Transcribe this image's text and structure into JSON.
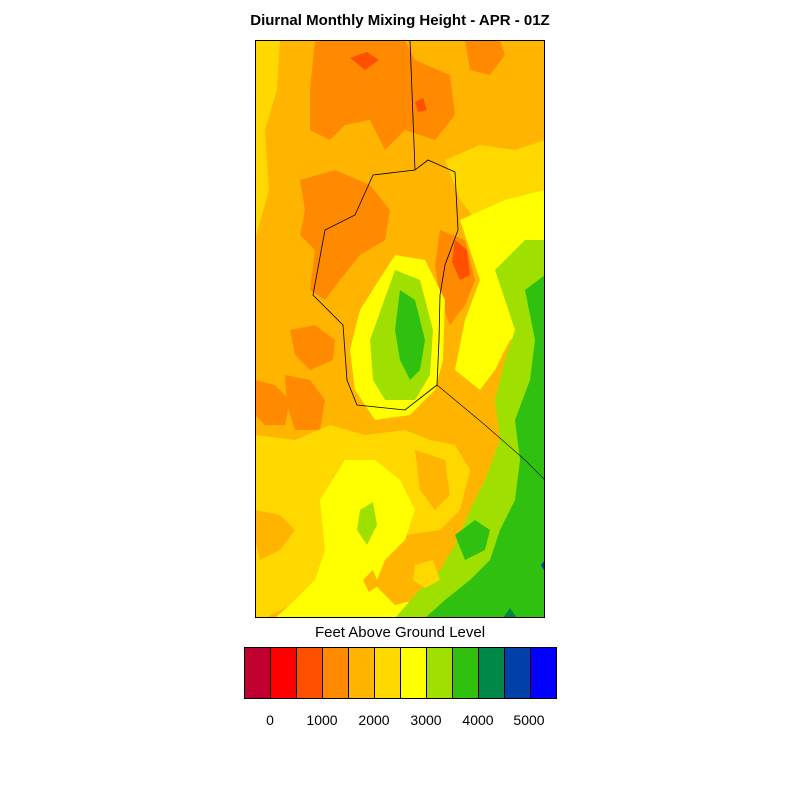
{
  "title": "Diurnal Monthly Mixing Height - APR - 01Z",
  "legend": {
    "title": "Feet Above Ground Level",
    "colors": [
      "#c00030",
      "#ff0000",
      "#ff5000",
      "#ff8a00",
      "#ffb400",
      "#ffd800",
      "#ffff00",
      "#a0e000",
      "#30c010",
      "#008848",
      "#0040a8",
      "#0000ff"
    ],
    "tick_labels": [
      "0",
      "1000",
      "2000",
      "3000",
      "4000",
      "5000"
    ]
  },
  "map": {
    "type": "filled-contour",
    "band_colors": {
      "orange": "#ff8a00",
      "orange_red": "#ff5000",
      "light_orange": "#ffb400",
      "gold": "#ffd800",
      "yellow": "#ffff00",
      "yellow_green": "#a0e000",
      "green": "#30c010",
      "dark_green": "#008848",
      "blue": "#0040a8"
    }
  }
}
